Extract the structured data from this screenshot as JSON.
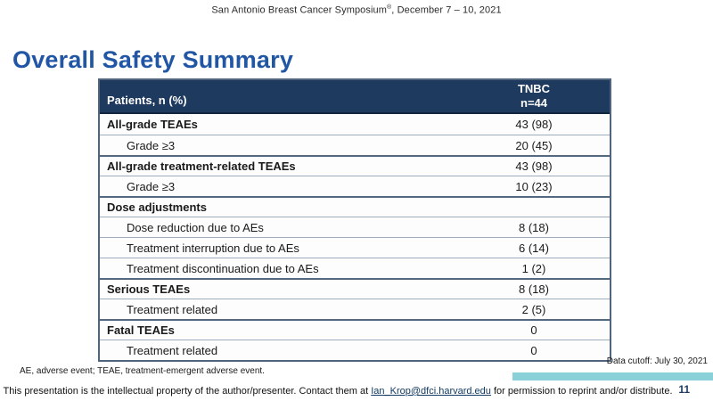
{
  "slide": {
    "conference": {
      "name": "San Antonio Breast Cancer Symposium",
      "registered_mark": "®",
      "date_suffix": ", December 7 – 10, 2021"
    },
    "title": "Overall Safety Summary",
    "data_cutoff": "Data cutoff: July 30, 2021",
    "abbrev_footnote": "AE, adverse event; TEAE, treatment-emergent adverse event.",
    "disclaimer": {
      "pre": "This presentation is the intellectual property of the author/presenter. Contact them at ",
      "email": "Ian_Krop@dfci.harvard.edu",
      "post": " for permission to reprint and/or distribute."
    },
    "page_number": "11"
  },
  "table": {
    "header": {
      "col1": "Patients, n (%)",
      "col2_line1": "TNBC",
      "col2_line2": "n=44"
    },
    "rows": [
      {
        "label": "All-grade TEAEs",
        "value": "43 (98)",
        "style": "section"
      },
      {
        "label": "Grade ≥3",
        "value": "20 (45)",
        "style": "sub"
      },
      {
        "label": "All-grade treatment-related TEAEs",
        "value": "43 (98)",
        "style": "section"
      },
      {
        "label": "Grade ≥3",
        "value": "10 (23)",
        "style": "sub"
      },
      {
        "label": "Dose adjustments",
        "value": "",
        "style": "section"
      },
      {
        "label": "Dose reduction due to AEs",
        "value": "8 (18)",
        "style": "sub"
      },
      {
        "label": "Treatment interruption due to AEs",
        "value": "6 (14)",
        "style": "sub"
      },
      {
        "label": "Treatment discontinuation due to AEs",
        "value": "1 (2)",
        "style": "sub"
      },
      {
        "label": "Serious TEAEs",
        "value": "8 (18)",
        "style": "section"
      },
      {
        "label": "Treatment related",
        "value": "2 (5)",
        "style": "sub"
      },
      {
        "label": "Fatal TEAEs",
        "value": "0",
        "style": "section"
      },
      {
        "label": "Treatment related",
        "value": "0",
        "style": "sub"
      }
    ]
  },
  "colors": {
    "header_bg": "#1e3a5f",
    "title_blue": "#2156a5",
    "accent_teal": "#8ad0d8",
    "page_number_blue": "#1e3a5f"
  }
}
